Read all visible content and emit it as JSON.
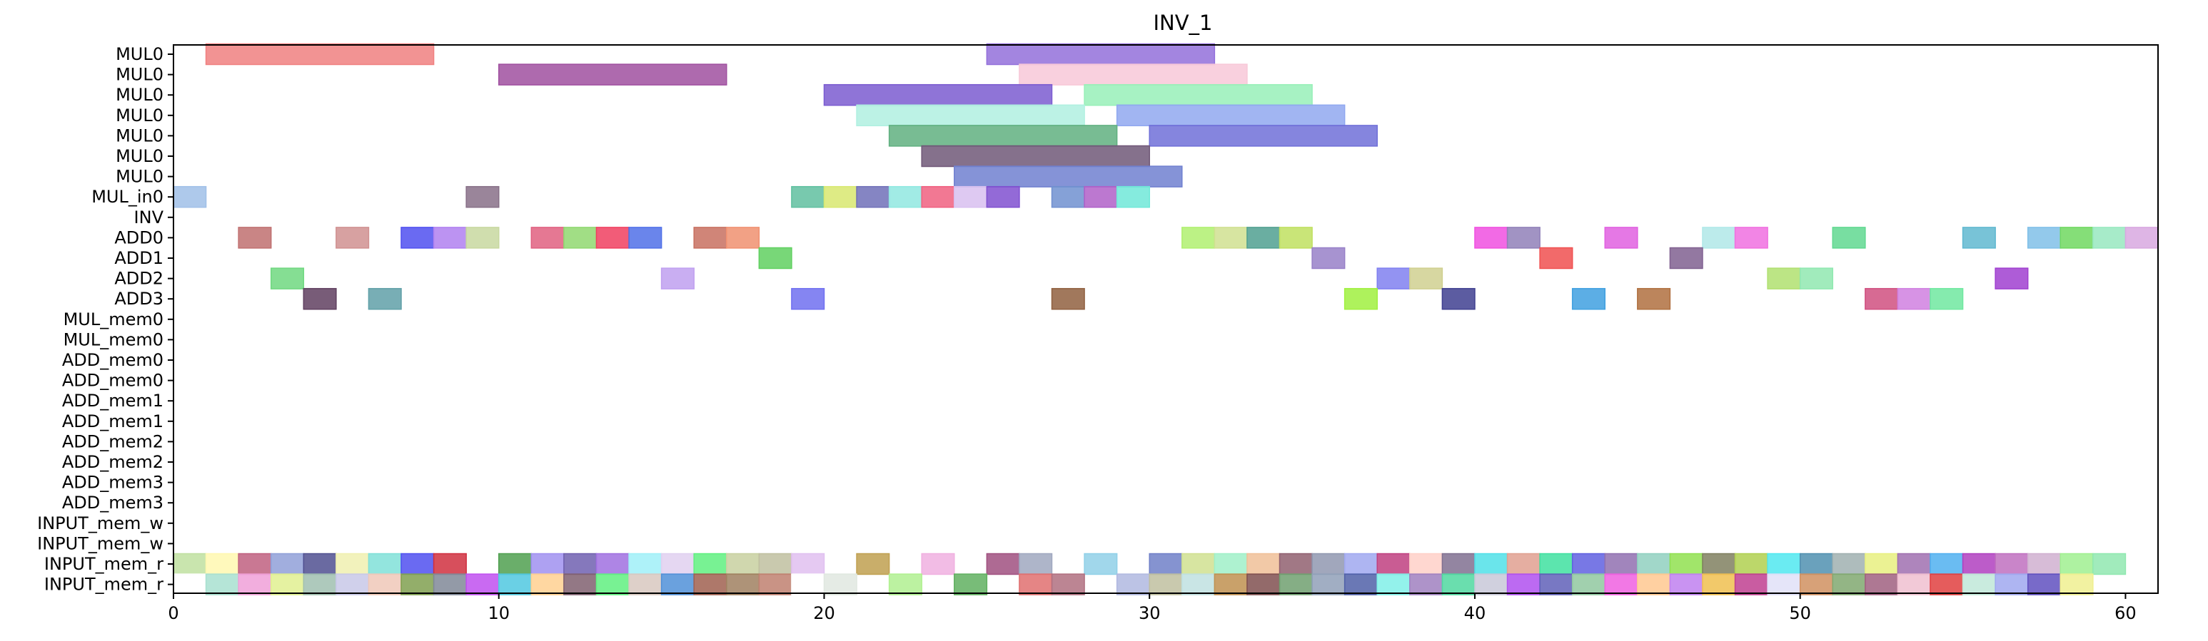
{
  "chart_data": {
    "type": "gantt",
    "title": "INV_1",
    "xlabel": "",
    "ylabel": "",
    "xlim": [
      0,
      61
    ],
    "x_ticks": [
      0,
      10,
      20,
      30,
      40,
      50,
      60
    ],
    "x_tick_labels": [
      "0",
      "10",
      "20",
      "30",
      "40",
      "50",
      "60"
    ],
    "grid": false,
    "rows": [
      "MUL0",
      "MUL0",
      "MUL0",
      "MUL0",
      "MUL0",
      "MUL0",
      "MUL0",
      "MUL_in0",
      "INV",
      "ADD0",
      "ADD1",
      "ADD2",
      "ADD3",
      "MUL_mem0",
      "MUL_mem0",
      "ADD_mem0",
      "ADD_mem0",
      "ADD_mem1",
      "ADD_mem1",
      "ADD_mem2",
      "ADD_mem2",
      "ADD_mem3",
      "ADD_mem3",
      "INPUT_mem_w",
      "INPUT_mem_w",
      "INPUT_mem_r",
      "INPUT_mem_r"
    ],
    "bars": [
      {
        "row": 0,
        "start": 1,
        "end": 8,
        "color": "#f08080"
      },
      {
        "row": 0,
        "start": 25,
        "end": 32,
        "color": "#9370db"
      },
      {
        "row": 1,
        "start": 10,
        "end": 17,
        "color": "#a050a0"
      },
      {
        "row": 1,
        "start": 26,
        "end": 33,
        "color": "#f8c8d8"
      },
      {
        "row": 2,
        "start": 20,
        "end": 27,
        "color": "#7b5cd0"
      },
      {
        "row": 2,
        "start": 28,
        "end": 35,
        "color": "#98f0b8"
      },
      {
        "row": 3,
        "start": 21,
        "end": 28,
        "color": "#b0f0e0"
      },
      {
        "row": 3,
        "start": 29,
        "end": 36,
        "color": "#90a8f0"
      },
      {
        "row": 4,
        "start": 22,
        "end": 29,
        "color": "#60b080"
      },
      {
        "row": 4,
        "start": 30,
        "end": 37,
        "color": "#7070d8"
      },
      {
        "row": 5,
        "start": 23,
        "end": 30,
        "color": "#705878"
      },
      {
        "row": 6,
        "start": 24,
        "end": 31,
        "color": "#7080d0"
      },
      {
        "row": 7,
        "start": 0,
        "end": 1,
        "color": "#a0c0e8"
      },
      {
        "row": 7,
        "start": 9,
        "end": 10,
        "color": "#887088"
      },
      {
        "row": 7,
        "start": 19,
        "end": 20,
        "color": "#60c0a0"
      },
      {
        "row": 7,
        "start": 20,
        "end": 21,
        "color": "#d8e870"
      },
      {
        "row": 7,
        "start": 21,
        "end": 22,
        "color": "#7070b8"
      },
      {
        "row": 7,
        "start": 22,
        "end": 23,
        "color": "#90e8e0"
      },
      {
        "row": 7,
        "start": 23,
        "end": 24,
        "color": "#f06080"
      },
      {
        "row": 7,
        "start": 24,
        "end": 25,
        "color": "#d8c0f0"
      },
      {
        "row": 7,
        "start": 25,
        "end": 26,
        "color": "#8050d0"
      },
      {
        "row": 7,
        "start": 27,
        "end": 28,
        "color": "#7090d0"
      },
      {
        "row": 7,
        "start": 28,
        "end": 29,
        "color": "#b060c8"
      },
      {
        "row": 7,
        "start": 29,
        "end": 30,
        "color": "#70e8d8"
      },
      {
        "row": 9,
        "start": 2,
        "end": 3,
        "color": "#c07070"
      },
      {
        "row": 9,
        "start": 5,
        "end": 6,
        "color": "#d09090"
      },
      {
        "row": 9,
        "start": 7,
        "end": 8,
        "color": "#5050f0"
      },
      {
        "row": 9,
        "start": 8,
        "end": 9,
        "color": "#b080f0"
      },
      {
        "row": 9,
        "start": 9,
        "end": 10,
        "color": "#c8d8a0"
      },
      {
        "row": 9,
        "start": 11,
        "end": 12,
        "color": "#e06080"
      },
      {
        "row": 9,
        "start": 12,
        "end": 13,
        "color": "#90d870"
      },
      {
        "row": 9,
        "start": 13,
        "end": 14,
        "color": "#f04060"
      },
      {
        "row": 9,
        "start": 14,
        "end": 15,
        "color": "#5070e8"
      },
      {
        "row": 9,
        "start": 16,
        "end": 17,
        "color": "#c87060"
      },
      {
        "row": 9,
        "start": 17,
        "end": 18,
        "color": "#f09070"
      },
      {
        "row": 9,
        "start": 31,
        "end": 32,
        "color": "#b0f070"
      },
      {
        "row": 9,
        "start": 32,
        "end": 33,
        "color": "#d0e090"
      },
      {
        "row": 9,
        "start": 33,
        "end": 34,
        "color": "#50a090"
      },
      {
        "row": 9,
        "start": 34,
        "end": 35,
        "color": "#c0e060"
      },
      {
        "row": 9,
        "start": 40,
        "end": 41,
        "color": "#f050e0"
      },
      {
        "row": 9,
        "start": 41,
        "end": 42,
        "color": "#9080b8"
      },
      {
        "row": 9,
        "start": 44,
        "end": 45,
        "color": "#e060e0"
      },
      {
        "row": 9,
        "start": 47,
        "end": 48,
        "color": "#b0e8e8"
      },
      {
        "row": 9,
        "start": 48,
        "end": 49,
        "color": "#f070e0"
      },
      {
        "row": 9,
        "start": 51,
        "end": 52,
        "color": "#60d890"
      },
      {
        "row": 9,
        "start": 55,
        "end": 56,
        "color": "#60b8d0"
      },
      {
        "row": 9,
        "start": 57,
        "end": 58,
        "color": "#80c0e8"
      },
      {
        "row": 9,
        "start": 58,
        "end": 59,
        "color": "#70d860"
      },
      {
        "row": 9,
        "start": 59,
        "end": 60,
        "color": "#98e8c0"
      },
      {
        "row": 9,
        "start": 60,
        "end": 61,
        "color": "#d8a8e0"
      },
      {
        "row": 10,
        "start": 18,
        "end": 19,
        "color": "#60d060"
      },
      {
        "row": 10,
        "start": 35,
        "end": 36,
        "color": "#9880c8"
      },
      {
        "row": 10,
        "start": 42,
        "end": 43,
        "color": "#f05050"
      },
      {
        "row": 10,
        "start": 46,
        "end": 47,
        "color": "#806090"
      },
      {
        "row": 11,
        "start": 3,
        "end": 4,
        "color": "#70d880"
      },
      {
        "row": 11,
        "start": 15,
        "end": 16,
        "color": "#c0a0f0"
      },
      {
        "row": 11,
        "start": 37,
        "end": 38,
        "color": "#8080f0"
      },
      {
        "row": 11,
        "start": 38,
        "end": 39,
        "color": "#d0d090"
      },
      {
        "row": 11,
        "start": 49,
        "end": 50,
        "color": "#b0e070"
      },
      {
        "row": 11,
        "start": 50,
        "end": 51,
        "color": "#90e8b0"
      },
      {
        "row": 11,
        "start": 56,
        "end": 57,
        "color": "#a040d0"
      },
      {
        "row": 12,
        "start": 4,
        "end": 5,
        "color": "#604060"
      },
      {
        "row": 12,
        "start": 6,
        "end": 7,
        "color": "#60a0a8"
      },
      {
        "row": 12,
        "start": 19,
        "end": 20,
        "color": "#7070f0"
      },
      {
        "row": 12,
        "start": 27,
        "end": 28,
        "color": "#906040"
      },
      {
        "row": 12,
        "start": 36,
        "end": 37,
        "color": "#a0f040"
      },
      {
        "row": 12,
        "start": 39,
        "end": 40,
        "color": "#404090"
      },
      {
        "row": 12,
        "start": 43,
        "end": 44,
        "color": "#40a0e0"
      },
      {
        "row": 12,
        "start": 45,
        "end": 46,
        "color": "#b07040"
      },
      {
        "row": 12,
        "start": 52,
        "end": 53,
        "color": "#d05080"
      },
      {
        "row": 12,
        "start": 53,
        "end": 54,
        "color": "#d080e0"
      },
      {
        "row": 12,
        "start": 54,
        "end": 55,
        "color": "#70e8a0"
      },
      {
        "row": 25,
        "start": 0,
        "end": 1,
        "color": "#c0e0a0"
      },
      {
        "row": 25,
        "start": 1,
        "end": 2,
        "color": "#fff8b0"
      },
      {
        "row": 25,
        "start": 2,
        "end": 3,
        "color": "#c06080"
      },
      {
        "row": 25,
        "start": 3,
        "end": 4,
        "color": "#90a0d8"
      },
      {
        "row": 25,
        "start": 4,
        "end": 5,
        "color": "#505090"
      },
      {
        "row": 25,
        "start": 5,
        "end": 6,
        "color": "#f0f0b0"
      },
      {
        "row": 25,
        "start": 6,
        "end": 7,
        "color": "#80e0d8"
      },
      {
        "row": 25,
        "start": 7,
        "end": 8,
        "color": "#5050f0"
      },
      {
        "row": 25,
        "start": 8,
        "end": 9,
        "color": "#d03040"
      },
      {
        "row": 25,
        "start": 10,
        "end": 11,
        "color": "#50a050"
      },
      {
        "row": 25,
        "start": 11,
        "end": 12,
        "color": "#a090f0"
      },
      {
        "row": 25,
        "start": 12,
        "end": 13,
        "color": "#7060b0"
      },
      {
        "row": 25,
        "start": 13,
        "end": 14,
        "color": "#a070e0"
      },
      {
        "row": 25,
        "start": 14,
        "end": 15,
        "color": "#a0f0f8"
      },
      {
        "row": 25,
        "start": 15,
        "end": 16,
        "color": "#e0d0f0"
      },
      {
        "row": 25,
        "start": 16,
        "end": 17,
        "color": "#60f080"
      },
      {
        "row": 25,
        "start": 17,
        "end": 18,
        "color": "#c8d0a0"
      },
      {
        "row": 25,
        "start": 18,
        "end": 19,
        "color": "#c0c0a0"
      },
      {
        "row": 25,
        "start": 19,
        "end": 20,
        "color": "#e0c0f0"
      },
      {
        "row": 25,
        "start": 21,
        "end": 22,
        "color": "#c0a050"
      },
      {
        "row": 25,
        "start": 23,
        "end": 24,
        "color": "#f0b0e0"
      },
      {
        "row": 25,
        "start": 25,
        "end": 26,
        "color": "#a05080"
      },
      {
        "row": 25,
        "start": 26,
        "end": 27,
        "color": "#a0a8c0"
      },
      {
        "row": 25,
        "start": 28,
        "end": 29,
        "color": "#90d0e8"
      },
      {
        "row": 25,
        "start": 30,
        "end": 31,
        "color": "#7080c8"
      },
      {
        "row": 25,
        "start": 31,
        "end": 32,
        "color": "#d0e090"
      },
      {
        "row": 25,
        "start": 32,
        "end": 33,
        "color": "#a0f0c8"
      },
      {
        "row": 25,
        "start": 33,
        "end": 34,
        "color": "#f0c098"
      },
      {
        "row": 25,
        "start": 34,
        "end": 35,
        "color": "#906070"
      },
      {
        "row": 25,
        "start": 35,
        "end": 36,
        "color": "#9098b0"
      },
      {
        "row": 25,
        "start": 36,
        "end": 37,
        "color": "#a0a8f0"
      },
      {
        "row": 25,
        "start": 37,
        "end": 38,
        "color": "#c04080"
      },
      {
        "row": 25,
        "start": 38,
        "end": 39,
        "color": "#ffd0c8"
      },
      {
        "row": 25,
        "start": 39,
        "end": 40,
        "color": "#807090"
      },
      {
        "row": 25,
        "start": 40,
        "end": 41,
        "color": "#50e0e8"
      },
      {
        "row": 25,
        "start": 41,
        "end": 42,
        "color": "#e0a090"
      },
      {
        "row": 25,
        "start": 42,
        "end": 43,
        "color": "#40e0a0"
      },
      {
        "row": 25,
        "start": 43,
        "end": 44,
        "color": "#6060e0"
      },
      {
        "row": 25,
        "start": 44,
        "end": 45,
        "color": "#9070b0"
      },
      {
        "row": 25,
        "start": 45,
        "end": 46,
        "color": "#90d0c0"
      },
      {
        "row": 25,
        "start": 46,
        "end": 47,
        "color": "#90e050"
      },
      {
        "row": 25,
        "start": 47,
        "end": 48,
        "color": "#808060"
      },
      {
        "row": 25,
        "start": 48,
        "end": 49,
        "color": "#b0d050"
      },
      {
        "row": 25,
        "start": 49,
        "end": 50,
        "color": "#50e8f0"
      },
      {
        "row": 25,
        "start": 50,
        "end": 51,
        "color": "#5090b0"
      },
      {
        "row": 25,
        "start": 51,
        "end": 52,
        "color": "#a0b0b0"
      },
      {
        "row": 25,
        "start": 52,
        "end": 53,
        "color": "#e8f080"
      },
      {
        "row": 25,
        "start": 53,
        "end": 54,
        "color": "#a070b0"
      },
      {
        "row": 25,
        "start": 54,
        "end": 55,
        "color": "#50b0f0"
      },
      {
        "row": 25,
        "start": 55,
        "end": 56,
        "color": "#b040c0"
      },
      {
        "row": 25,
        "start": 56,
        "end": 57,
        "color": "#c070c0"
      },
      {
        "row": 25,
        "start": 57,
        "end": 58,
        "color": "#d0b0d0"
      },
      {
        "row": 25,
        "start": 58,
        "end": 59,
        "color": "#a0f090"
      },
      {
        "row": 25,
        "start": 59,
        "end": 60,
        "color": "#90e8b0"
      },
      {
        "row": 26,
        "start": 0,
        "end": 1,
        "color": "#ffffff"
      },
      {
        "row": 26,
        "start": 1,
        "end": 2,
        "color": "#a8e0d0"
      },
      {
        "row": 26,
        "start": 2,
        "end": 3,
        "color": "#f0a0d8"
      },
      {
        "row": 26,
        "start": 3,
        "end": 4,
        "color": "#e0f090"
      },
      {
        "row": 26,
        "start": 4,
        "end": 5,
        "color": "#a0c0b0"
      },
      {
        "row": 26,
        "start": 5,
        "end": 6,
        "color": "#c8c8e8"
      },
      {
        "row": 26,
        "start": 6,
        "end": 7,
        "color": "#f0c8b8"
      },
      {
        "row": 26,
        "start": 7,
        "end": 8,
        "color": "#80a050"
      },
      {
        "row": 26,
        "start": 8,
        "end": 9,
        "color": "#808898"
      },
      {
        "row": 26,
        "start": 9,
        "end": 10,
        "color": "#c050f0"
      },
      {
        "row": 26,
        "start": 10,
        "end": 11,
        "color": "#50c8e0"
      },
      {
        "row": 26,
        "start": 11,
        "end": 12,
        "color": "#ffd090"
      },
      {
        "row": 26,
        "start": 12,
        "end": 13,
        "color": "#806070"
      },
      {
        "row": 26,
        "start": 13,
        "end": 14,
        "color": "#60f080"
      },
      {
        "row": 26,
        "start": 14,
        "end": 15,
        "color": "#d8c8c0"
      },
      {
        "row": 26,
        "start": 15,
        "end": 16,
        "color": "#5090d8"
      },
      {
        "row": 26,
        "start": 16,
        "end": 17,
        "color": "#a06050"
      },
      {
        "row": 26,
        "start": 17,
        "end": 18,
        "color": "#a08060"
      },
      {
        "row": 26,
        "start": 18,
        "end": 19,
        "color": "#c08070"
      },
      {
        "row": 26,
        "start": 19,
        "end": 20,
        "color": "#ffffff"
      },
      {
        "row": 26,
        "start": 20,
        "end": 21,
        "color": "#e0e8e0"
      },
      {
        "row": 26,
        "start": 22,
        "end": 23,
        "color": "#b0f090"
      },
      {
        "row": 26,
        "start": 24,
        "end": 25,
        "color": "#60b060"
      },
      {
        "row": 26,
        "start": 26,
        "end": 27,
        "color": "#e07070"
      },
      {
        "row": 26,
        "start": 27,
        "end": 28,
        "color": "#b07080"
      },
      {
        "row": 26,
        "start": 29,
        "end": 30,
        "color": "#b0b8e0"
      },
      {
        "row": 26,
        "start": 30,
        "end": 31,
        "color": "#c0c0a0"
      },
      {
        "row": 26,
        "start": 31,
        "end": 32,
        "color": "#c0e0e0"
      },
      {
        "row": 26,
        "start": 32,
        "end": 33,
        "color": "#c09050"
      },
      {
        "row": 26,
        "start": 33,
        "end": 34,
        "color": "#805050"
      },
      {
        "row": 26,
        "start": 34,
        "end": 35,
        "color": "#70a070"
      },
      {
        "row": 26,
        "start": 35,
        "end": 36,
        "color": "#90a0b8"
      },
      {
        "row": 26,
        "start": 36,
        "end": 37,
        "color": "#5060a8"
      },
      {
        "row": 26,
        "start": 37,
        "end": 38,
        "color": "#80f0e8"
      },
      {
        "row": 26,
        "start": 38,
        "end": 39,
        "color": "#a080c0"
      },
      {
        "row": 26,
        "start": 39,
        "end": 40,
        "color": "#50d8a0"
      },
      {
        "row": 26,
        "start": 40,
        "end": 41,
        "color": "#c8c8d8"
      },
      {
        "row": 26,
        "start": 41,
        "end": 42,
        "color": "#b050f0"
      },
      {
        "row": 26,
        "start": 42,
        "end": 43,
        "color": "#6060b8"
      },
      {
        "row": 26,
        "start": 43,
        "end": 44,
        "color": "#90c8a0"
      },
      {
        "row": 26,
        "start": 44,
        "end": 45,
        "color": "#f060e0"
      },
      {
        "row": 26,
        "start": 45,
        "end": 46,
        "color": "#ffc890"
      },
      {
        "row": 26,
        "start": 46,
        "end": 47,
        "color": "#c080f0"
      },
      {
        "row": 26,
        "start": 47,
        "end": 48,
        "color": "#f0c050"
      },
      {
        "row": 26,
        "start": 48,
        "end": 49,
        "color": "#c04090"
      },
      {
        "row": 26,
        "start": 49,
        "end": 50,
        "color": "#e0e0f8"
      },
      {
        "row": 26,
        "start": 50,
        "end": 51,
        "color": "#d09060"
      },
      {
        "row": 26,
        "start": 51,
        "end": 52,
        "color": "#80a870"
      },
      {
        "row": 26,
        "start": 52,
        "end": 53,
        "color": "#a06080"
      },
      {
        "row": 26,
        "start": 53,
        "end": 54,
        "color": "#f0c0d0"
      },
      {
        "row": 26,
        "start": 54,
        "end": 55,
        "color": "#e04040"
      },
      {
        "row": 26,
        "start": 55,
        "end": 56,
        "color": "#c0e8d8"
      },
      {
        "row": 26,
        "start": 56,
        "end": 57,
        "color": "#a0a8f0"
      },
      {
        "row": 26,
        "start": 57,
        "end": 58,
        "color": "#6050c0"
      },
      {
        "row": 26,
        "start": 58,
        "end": 59,
        "color": "#f0f090"
      }
    ]
  }
}
